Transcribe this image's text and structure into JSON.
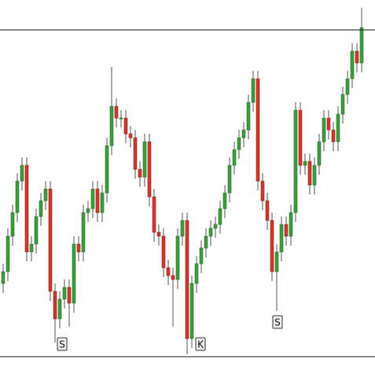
{
  "chart_data": {
    "type": "candlestick",
    "ylim": [
      0,
      475
    ],
    "up_color": "#3b9d3b",
    "down_color": "#d2362c",
    "open": [
      115,
      130,
      175,
      205,
      245,
      265,
      155,
      165,
      200,
      220,
      235,
      105,
      70,
      95,
      110,
      90,
      165,
      155,
      205,
      210,
      235,
      205,
      230,
      290,
      340,
      325,
      325,
      305,
      300,
      260,
      250,
      295,
      225,
      180,
      175,
      135,
      125,
      120,
      175,
      195,
      45,
      115,
      140,
      160,
      175,
      185,
      190,
      210,
      230,
      265,
      285,
      300,
      310,
      345,
      375,
      245,
      220,
      195,
      130,
      155,
      190,
      175,
      205,
      335,
      265,
      270,
      240,
      265,
      295,
      325,
      310,
      295,
      330,
      355,
      375,
      410,
      395
    ],
    "high": [
      140,
      185,
      215,
      255,
      275,
      275,
      175,
      210,
      230,
      245,
      245,
      115,
      105,
      120,
      120,
      175,
      175,
      215,
      220,
      245,
      245,
      240,
      300,
      390,
      350,
      335,
      335,
      315,
      310,
      270,
      305,
      305,
      235,
      190,
      185,
      145,
      135,
      185,
      205,
      205,
      125,
      150,
      170,
      185,
      195,
      200,
      220,
      240,
      275,
      295,
      310,
      320,
      355,
      385,
      385,
      255,
      230,
      205,
      165,
      200,
      200,
      215,
      345,
      345,
      280,
      280,
      275,
      305,
      335,
      335,
      320,
      340,
      365,
      385,
      420,
      420,
      465
    ],
    "low": [
      103,
      118,
      163,
      193,
      233,
      143,
      143,
      153,
      188,
      208,
      93,
      40,
      58,
      83,
      60,
      78,
      143,
      143,
      193,
      198,
      193,
      193,
      218,
      278,
      313,
      313,
      293,
      288,
      248,
      238,
      238,
      213,
      168,
      163,
      123,
      113,
      60,
      108,
      163,
      25,
      33,
      103,
      128,
      148,
      163,
      173,
      178,
      198,
      218,
      253,
      273,
      288,
      298,
      333,
      233,
      208,
      183,
      118,
      80,
      143,
      163,
      163,
      193,
      253,
      253,
      228,
      228,
      253,
      283,
      298,
      283,
      283,
      318,
      343,
      363,
      383,
      383
    ],
    "close": [
      130,
      175,
      205,
      245,
      265,
      155,
      165,
      200,
      220,
      235,
      105,
      70,
      95,
      110,
      90,
      165,
      155,
      205,
      210,
      235,
      205,
      230,
      290,
      340,
      325,
      325,
      305,
      300,
      260,
      250,
      295,
      225,
      180,
      175,
      135,
      125,
      120,
      175,
      195,
      45,
      115,
      140,
      160,
      175,
      185,
      190,
      210,
      230,
      265,
      285,
      300,
      310,
      345,
      375,
      245,
      220,
      195,
      130,
      155,
      190,
      175,
      205,
      335,
      265,
      270,
      240,
      265,
      295,
      325,
      310,
      295,
      330,
      355,
      375,
      410,
      395,
      440
    ],
    "hlines": [
      437,
      22
    ],
    "annotations": [
      "S",
      "K",
      "S"
    ]
  }
}
